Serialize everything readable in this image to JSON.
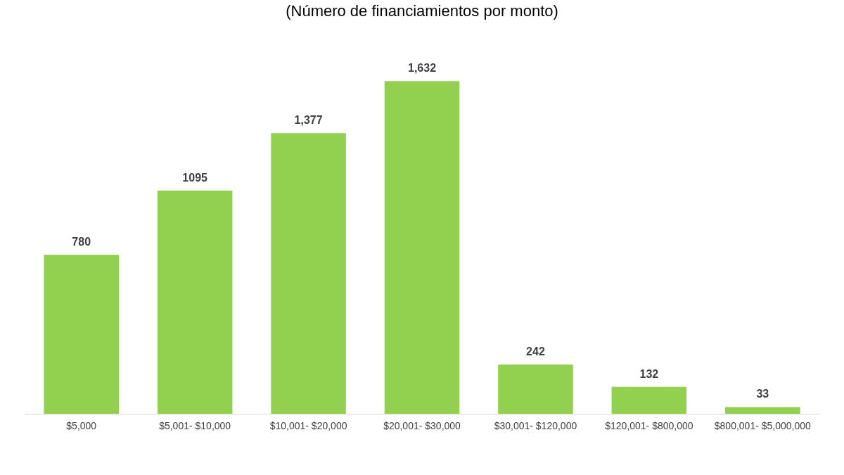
{
  "chart_data": {
    "type": "bar",
    "title": "(Número de financiamientos por monto)",
    "categories": [
      "$5,000",
      "$5,001- $10,000",
      "$10,001- $20,000",
      "$20,001- $30,000",
      "$30,001- $120,000",
      "$120,001- $800,000",
      "$800,001- $5,000,000"
    ],
    "values": [
      780,
      1095,
      1377,
      1632,
      242,
      132,
      33
    ],
    "value_labels": [
      "780",
      "1095",
      "1,377",
      "1,632",
      "242",
      "132",
      "33"
    ],
    "color": "#92d050"
  }
}
